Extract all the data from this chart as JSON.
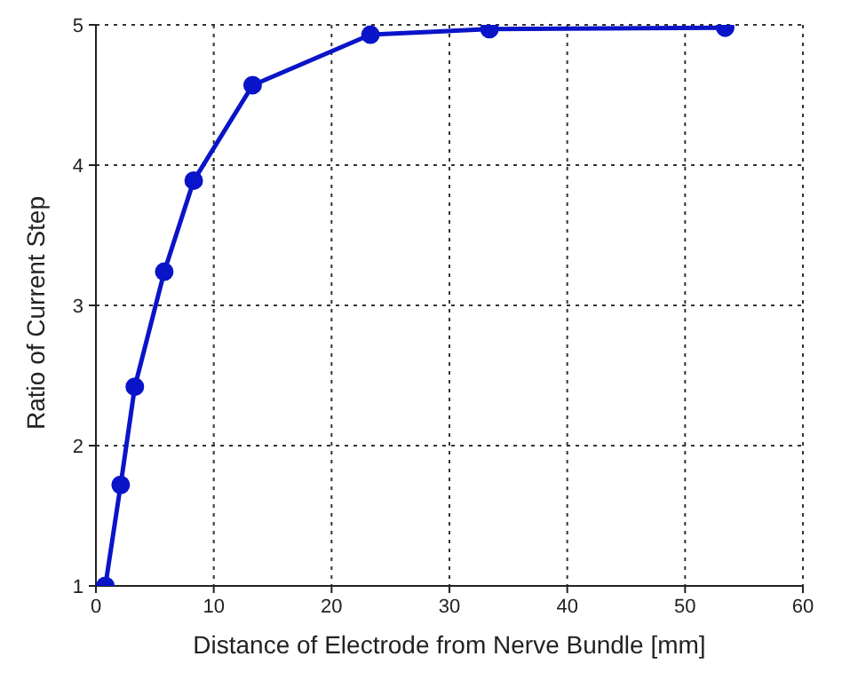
{
  "chart_data": {
    "type": "line",
    "xlabel": "Distance of Electrode from Nerve Bundle [mm]",
    "ylabel": "Ratio of Current Step",
    "x": [
      0.8,
      2.1,
      3.3,
      5.8,
      8.3,
      13.3,
      23.3,
      33.4,
      53.4
    ],
    "series": [
      {
        "color": "#0a14c8",
        "values": [
          1.0,
          1.72,
          2.42,
          3.24,
          3.89,
          4.57,
          4.93,
          4.97,
          4.98
        ]
      }
    ],
    "xlim": [
      0,
      60
    ],
    "xticks": [
      0,
      10,
      20,
      30,
      40,
      50,
      60
    ],
    "ylim": [
      1,
      5
    ],
    "yticks": [
      1,
      2,
      3,
      4,
      5
    ],
    "grid": true,
    "marker": "circle",
    "line_style": "solid"
  }
}
